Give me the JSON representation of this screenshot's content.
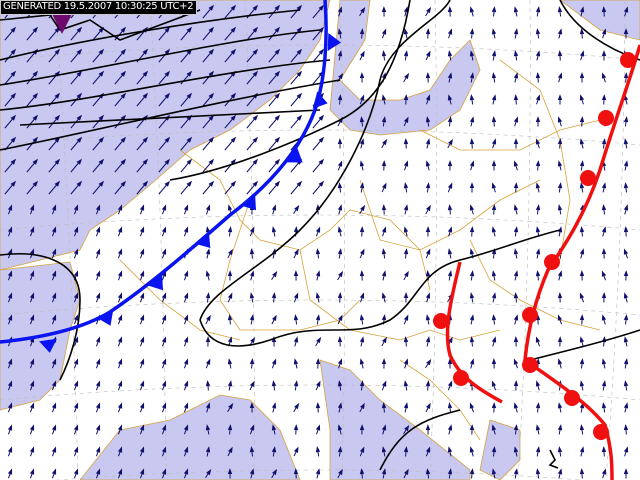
{
  "map": {
    "generated_label": "GENERATED 19.5.2007 10:30:25 UTC+2",
    "colors": {
      "sea": "#c8c8f0",
      "land": "#ffffff",
      "borders": "#d7a23c",
      "isobars": "#000000",
      "cold_front": "#0a14f0",
      "warm_occluded_front": "#f01010",
      "wind_arrows": "#10106e",
      "low_marker": "#6e0a6e"
    },
    "layers": [
      "sea-shading",
      "country-borders",
      "graticule",
      "wind-arrows",
      "isobars",
      "cold-front",
      "fronts-red"
    ]
  }
}
